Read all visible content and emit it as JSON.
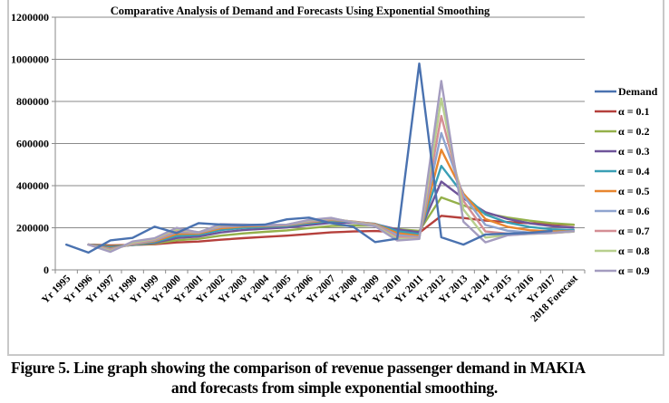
{
  "caption": {
    "line1": "Figure 5. Line graph showing the comparison of revenue passenger demand in MAKIA",
    "line2": "and forecasts from simple exponential smoothing."
  },
  "chart_data": {
    "type": "line",
    "title": "Comparative Analysis of Demand and Forecasts Using Exponential Smoothing",
    "xlabel": "",
    "ylabel": "",
    "ylim": [
      0,
      1200000
    ],
    "yticks": [
      0,
      200000,
      400000,
      600000,
      800000,
      1000000,
      1200000
    ],
    "ytick_labels": [
      "0",
      "200000",
      "400000",
      "600000",
      "800000",
      "1000000",
      "1200000"
    ],
    "grid": "horizontal",
    "legend_position": "right",
    "categories": [
      "Yr 1995",
      "Yr 1996",
      "Yr 1997",
      "Yr 1998",
      "Yr 1999",
      "Yr 2000",
      "Yr 2001",
      "Yr 2002",
      "Yr 2003",
      "Yr 2004",
      "Yr 2005",
      "Yr 2006",
      "Yr 2007",
      "Yr 2008",
      "Yr 2009",
      "Yr 2010",
      "Yr 2011",
      "Yr 2012",
      "Yr 2013",
      "Yr 2014",
      "Yr 2015",
      "Yr 2016",
      "Yr 2017",
      "2018 Forecast"
    ],
    "series": [
      {
        "name": "Demand",
        "color": "#4a72b0",
        "values": [
          120000,
          82000,
          140000,
          152000,
          205000,
          175000,
          222000,
          215000,
          212000,
          215000,
          240000,
          248000,
          222000,
          205000,
          132000,
          148000,
          980000,
          155000,
          120000,
          168000,
          172000,
          176000,
          185000,
          null
        ]
      },
      {
        "name": "α = 0.1",
        "color": "#b5403c",
        "values": [
          null,
          120000,
          116200,
          118580,
          121920,
          130230,
          134710,
          143440,
          150600,
          156740,
          162570,
          170310,
          178080,
          182470,
          184720,
          179450,
          176310,
          256680,
          246510,
          233860,
          227270,
          221740,
          217170,
          213950
        ]
      },
      {
        "name": "α = 0.2",
        "color": "#94b04a",
        "values": [
          null,
          120000,
          112400,
          117920,
          124740,
          140790,
          147630,
          162500,
          173000,
          180800,
          187640,
          198110,
          208090,
          210870,
          209700,
          194160,
          184930,
          343940,
          306150,
          268920,
          248740,
          233390,
          221910,
          214530
        ]
      },
      {
        "name": "α = 0.3",
        "color": "#6f559a",
        "values": [
          null,
          120000,
          108600,
          118020,
          128210,
          151250,
          158380,
          177460,
          188720,
          195700,
          201490,
          213040,
          223530,
          223070,
          217650,
          191950,
          178770,
          419140,
          339900,
          273930,
          242150,
          221100,
          207570,
          200800
        ]
      },
      {
        "name": "α = 0.4",
        "color": "#3a9fb5",
        "values": [
          null,
          120000,
          104800,
          118880,
          132130,
          161280,
          166770,
          188860,
          199320,
          204390,
          208630,
          221180,
          231910,
          227950,
          218770,
          184060,
          169640,
          493780,
          358270,
          262960,
          224980,
          203790,
          192670,
          189600
        ]
      },
      {
        "name": "α = 0.5",
        "color": "#e8862f",
        "values": [
          null,
          120000,
          101000,
          120500,
          136250,
          170630,
          172810,
          197410,
          206200,
          209100,
          212050,
          226030,
          237010,
          229500,
          217250,
          174630,
          161310,
          570660,
          362830,
          241410,
          204710,
          188350,
          182180,
          183590
        ]
      },
      {
        "name": "α = 0.6",
        "color": "#8fa4cf",
        "values": [
          null,
          120000,
          97200,
          122880,
          140350,
          179140,
          176660,
          203860,
          210540,
          211420,
          213570,
          229430,
          240570,
          229430,
          214770,
          165110,
          154840,
          649940,
          352980,
          213190,
          186080,
          177630,
          176650,
          181660
        ]
      },
      {
        "name": "α = 0.7",
        "color": "#d48e94",
        "values": [
          null,
          120000,
          93400,
          126020,
          144210,
          186760,
          178530,
          208960,
          213190,
          212360,
          214210,
          232260,
          243280,
          228380,
          212010,
          156000,
          150400,
          731120,
          327840,
          182350,
          172310,
          172090,
          174830,
          181950
        ]
      },
      {
        "name": "α = 0.8",
        "color": "#b8cf8e",
        "values": [
          null,
          120000,
          89600,
          129920,
          147580,
          193520,
          178700,
          213340,
          214670,
          212530,
          214510,
          234900,
          245380,
          226680,
          209340,
          147470,
          147890,
          813580,
          286720,
          153340,
          165070,
          170610,
          174920,
          182980
        ]
      },
      {
        "name": "α = 0.9",
        "color": "#a49cbf",
        "values": [
          null,
          120000,
          85800,
          134580,
          150260,
          199530,
          177450,
          217550,
          215260,
          212330,
          214730,
          237470,
          246950,
          224500,
          206950,
          139500,
          147150,
          896720,
          229170,
          130920,
          164290,
          171230,
          175520,
          184050
        ]
      }
    ]
  }
}
